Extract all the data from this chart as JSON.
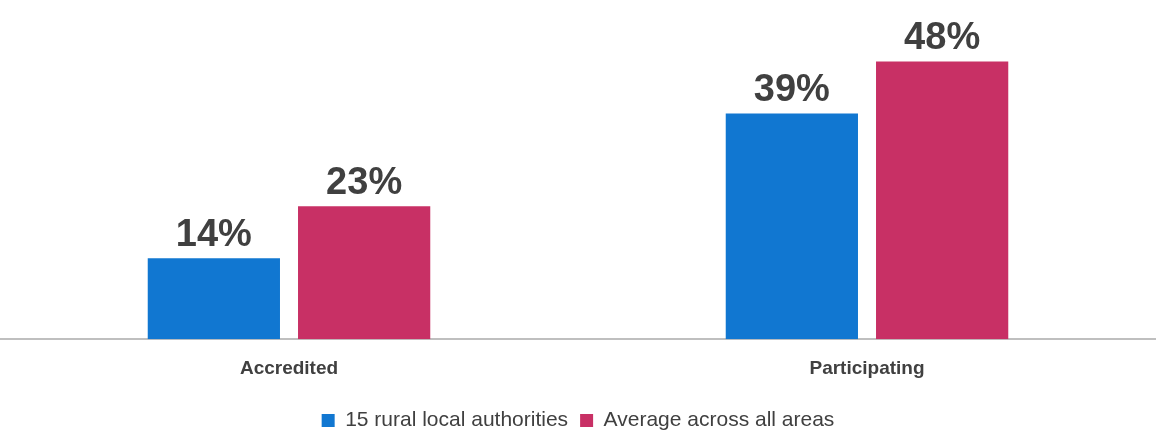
{
  "chart_data": {
    "type": "bar",
    "categories": [
      "Accredited",
      "Participating"
    ],
    "series": [
      {
        "name": "15 rural local authorities",
        "color": "#1177d1",
        "values": [
          14,
          39
        ],
        "value_labels": [
          "14%",
          "39%"
        ]
      },
      {
        "name": "Average across all areas",
        "color": "#c83065",
        "values": [
          23,
          48
        ],
        "value_labels": [
          "23%",
          "48%"
        ]
      }
    ],
    "legend": "bottom",
    "grid": false
  }
}
